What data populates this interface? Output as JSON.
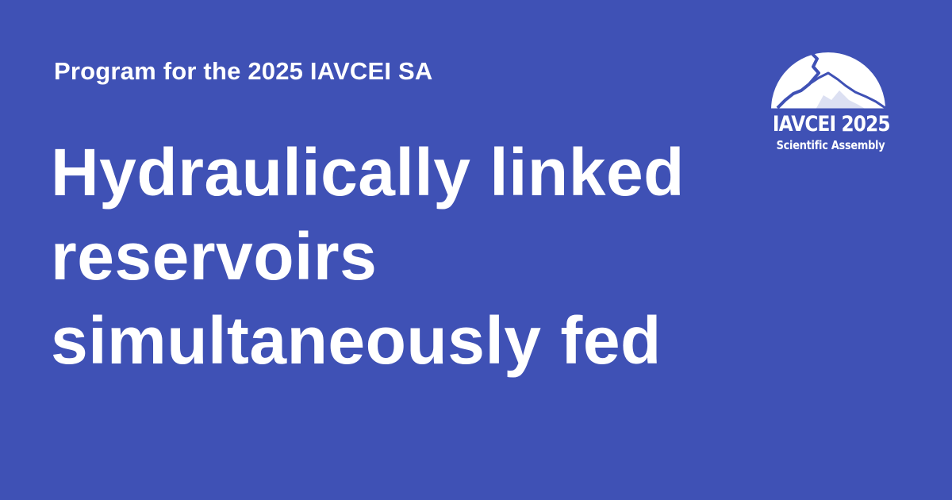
{
  "card": {
    "eyebrow": "Program for the 2025 IAVCEI SA",
    "title_lines": [
      "Hydraulically linked",
      "reservoirs",
      "simultaneously fed"
    ],
    "background_color": "#3f51b5",
    "text_color": "#ffffff"
  },
  "logo": {
    "icon": "volcano-mountain-icon",
    "name": "IAVCEI 2025",
    "subtitle": "Scientific Assembly"
  }
}
